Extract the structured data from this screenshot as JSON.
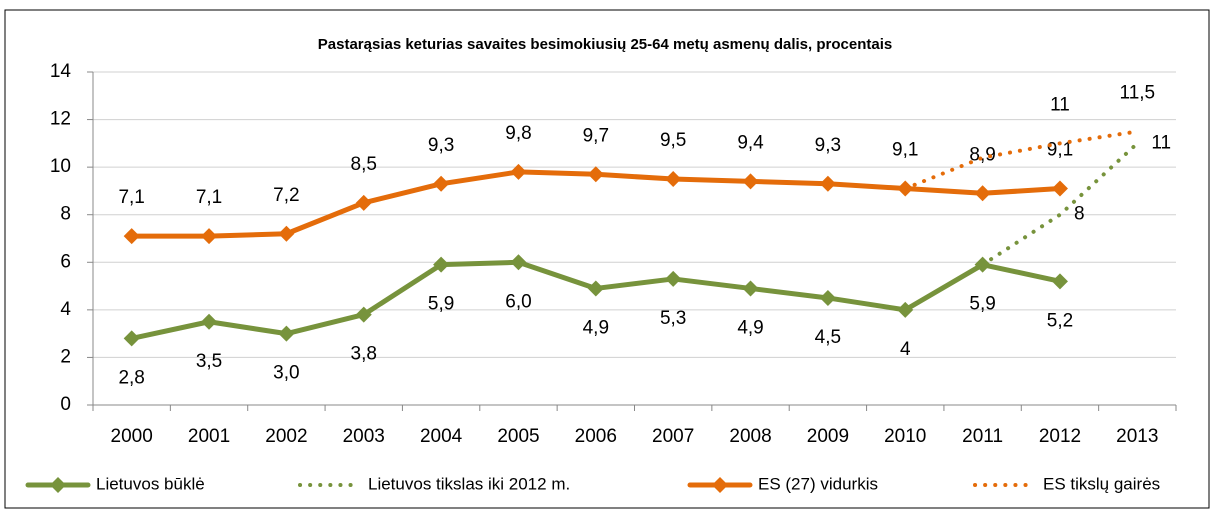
{
  "chart_data": {
    "type": "line",
    "title": "Pastarąsias keturias savaites besimokiusių  25-64 metų asmenų dalis, procentais",
    "categories": [
      "2000",
      "2001",
      "2002",
      "2003",
      "2004",
      "2005",
      "2006",
      "2007",
      "2008",
      "2009",
      "2010",
      "2011",
      "2012",
      "2013"
    ],
    "ylim": [
      0,
      14
    ],
    "yticks": [
      0,
      2,
      4,
      6,
      8,
      10,
      12,
      14
    ],
    "grid": true,
    "legend": "bottom",
    "series": [
      {
        "name": "Lietuvos būklė",
        "color": "#77933c",
        "style": "solid",
        "marker": true,
        "values": [
          2.8,
          3.5,
          3.0,
          3.8,
          5.9,
          6.0,
          4.9,
          5.3,
          4.9,
          4.5,
          4.0,
          5.9,
          5.2,
          null
        ],
        "value_labels": [
          "2,8",
          "3,5",
          "3,0",
          "3,8",
          "5,9",
          "6,0",
          "4,9",
          "5,3",
          "4,9",
          "4,5",
          "4",
          "5,9",
          "5,2",
          null
        ]
      },
      {
        "name": "Lietuvos tikslas iki 2012 m.",
        "color": "#77933c",
        "style": "dotted",
        "marker": false,
        "values": [
          null,
          null,
          null,
          null,
          null,
          null,
          null,
          null,
          null,
          null,
          null,
          5.9,
          8,
          11
        ],
        "value_labels": [
          null,
          null,
          null,
          null,
          null,
          null,
          null,
          null,
          null,
          null,
          null,
          null,
          "8",
          "11"
        ]
      },
      {
        "name": "ES (27) vidurkis",
        "color": "#e46c0a",
        "style": "solid",
        "marker": true,
        "values": [
          7.1,
          7.1,
          7.2,
          8.5,
          9.3,
          9.8,
          9.7,
          9.5,
          9.4,
          9.3,
          9.1,
          8.9,
          9.1,
          null
        ],
        "value_labels": [
          "7,1",
          "7,1",
          "7,2",
          "8,5",
          "9,3",
          "9,8",
          "9,7",
          "9,5",
          "9,4",
          "9,3",
          "9,1",
          "8,9",
          "9,1",
          null
        ]
      },
      {
        "name": "ES tikslų gairės",
        "color": "#e46c0a",
        "style": "dotted",
        "marker": false,
        "values": [
          null,
          null,
          null,
          null,
          null,
          null,
          null,
          null,
          null,
          null,
          9.1,
          10.4,
          11,
          11.5
        ],
        "value_labels": [
          null,
          null,
          null,
          null,
          null,
          null,
          null,
          null,
          null,
          null,
          null,
          null,
          "11",
          "11,5"
        ]
      }
    ]
  }
}
